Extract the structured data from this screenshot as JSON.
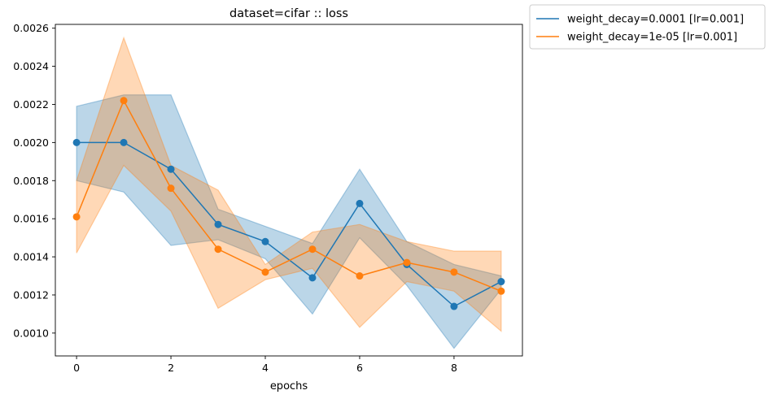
{
  "chart_data": {
    "type": "line",
    "title": "dataset=cifar :: loss",
    "xlabel": "epochs",
    "ylabel": "",
    "xlim": [
      -0.45,
      9.45
    ],
    "ylim": [
      0.00088,
      0.00262
    ],
    "xticks": [
      0,
      2,
      4,
      6,
      8
    ],
    "yticks": [
      0.001,
      0.0012,
      0.0014,
      0.0016,
      0.0018,
      0.002,
      0.0022,
      0.0024,
      0.0026
    ],
    "ytick_labels": [
      "0.0010",
      "0.0012",
      "0.0014",
      "0.0016",
      "0.0018",
      "0.0020",
      "0.0022",
      "0.0024",
      "0.0026"
    ],
    "grid": false,
    "legend_position": "outside-top-right",
    "x": [
      0,
      1,
      2,
      3,
      4,
      5,
      6,
      7,
      8,
      9
    ],
    "series": [
      {
        "name": "weight_decay=0.0001 [lr=0.001]",
        "color": "#1f77b4",
        "values": [
          0.002,
          0.002,
          0.00186,
          0.00157,
          0.00148,
          0.00129,
          0.00168,
          0.00136,
          0.00114,
          0.00127
        ],
        "lower": [
          0.0018,
          0.00174,
          0.00146,
          0.00149,
          0.00139,
          0.0011,
          0.0015,
          0.00125,
          0.00092,
          0.00123
        ],
        "upper": [
          0.00219,
          0.00225,
          0.00225,
          0.00165,
          0.00156,
          0.00147,
          0.00186,
          0.00148,
          0.00136,
          0.0013
        ]
      },
      {
        "name": "weight_decay=1e-05 [lr=0.001]",
        "color": "#ff7f0e",
        "values": [
          0.00161,
          0.00222,
          0.00176,
          0.00144,
          0.00132,
          0.00144,
          0.0013,
          0.00137,
          0.00132,
          0.00122
        ],
        "lower": [
          0.00142,
          0.00188,
          0.00164,
          0.00113,
          0.00128,
          0.00134,
          0.00103,
          0.00127,
          0.00122,
          0.00101
        ],
        "upper": [
          0.0018,
          0.00255,
          0.00188,
          0.00175,
          0.00136,
          0.00153,
          0.00157,
          0.00148,
          0.00143,
          0.00143
        ]
      }
    ]
  }
}
